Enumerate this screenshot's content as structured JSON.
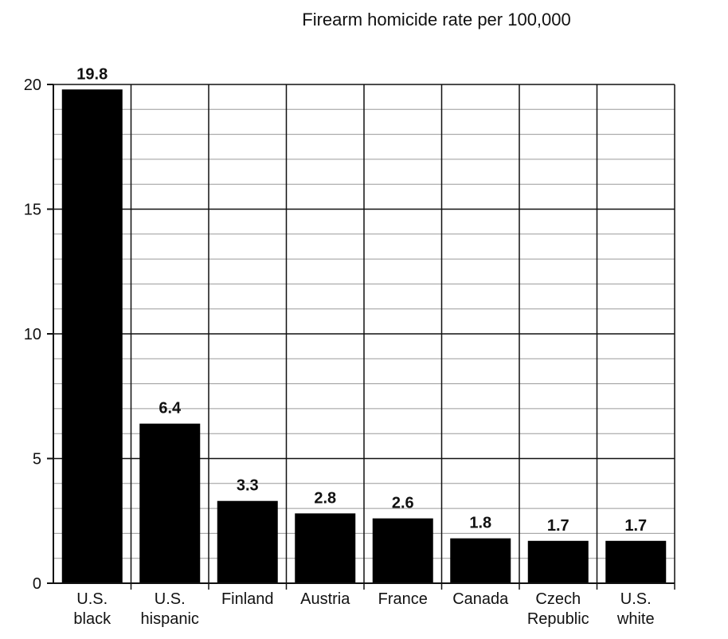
{
  "chart_data": {
    "type": "bar",
    "title": "Firearm homicide rate per 100,000",
    "xlabel": "",
    "ylabel": "",
    "ylim": [
      0,
      20
    ],
    "yticks": [
      "0",
      "5",
      "10",
      "15",
      "20"
    ],
    "grid": true,
    "categories": [
      [
        "U.S.",
        "black"
      ],
      [
        "U.S.",
        "hispanic"
      ],
      [
        "Finland"
      ],
      [
        "Austria"
      ],
      [
        "France"
      ],
      [
        "Canada"
      ],
      [
        "Czech",
        "Republic"
      ],
      [
        "U.S.",
        "white"
      ]
    ],
    "values": [
      19.8,
      6.4,
      3.3,
      2.8,
      2.6,
      1.8,
      1.7,
      1.7
    ],
    "value_labels": [
      "19.8",
      "6.4",
      "3.3",
      "2.8",
      "2.6",
      "1.8",
      "1.7",
      "1.7"
    ],
    "bar_color": "#000000"
  }
}
